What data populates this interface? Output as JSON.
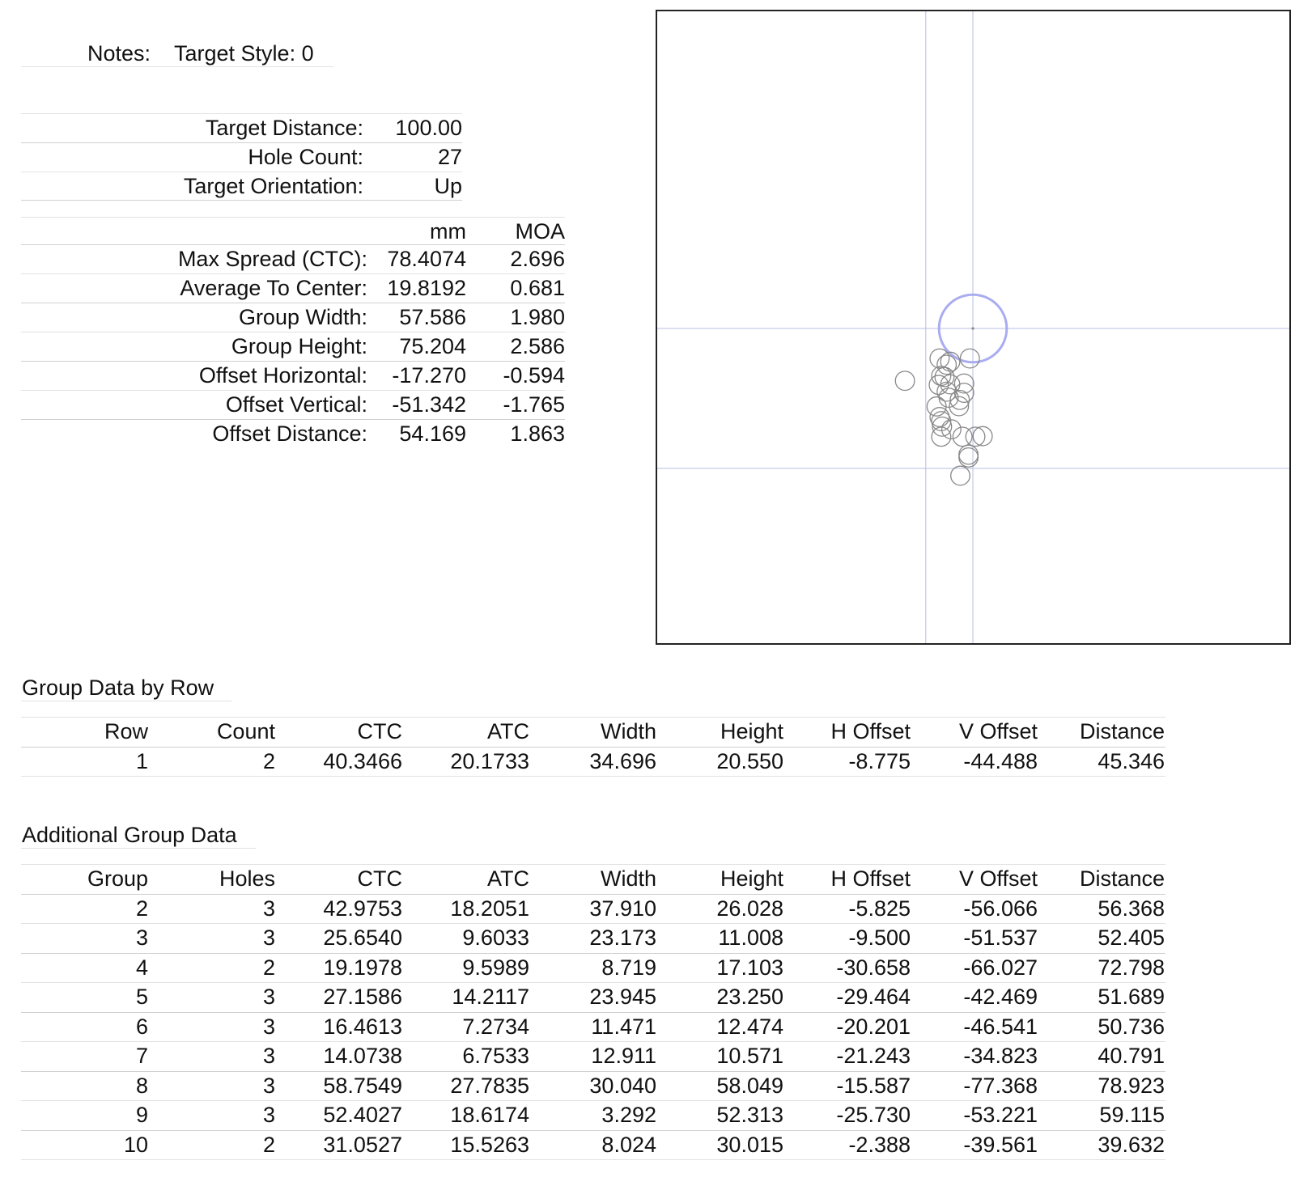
{
  "notes": {
    "label": "Notes:",
    "value": "Target Style: 0"
  },
  "target_info": [
    {
      "label": "Target Distance:",
      "value": "100.00"
    },
    {
      "label": "Hole Count:",
      "value": "27"
    },
    {
      "label": "Target Orientation:",
      "value": "Up"
    }
  ],
  "stats": {
    "headers": {
      "mm": "mm",
      "moa": "MOA"
    },
    "rows": [
      {
        "label": "Max Spread (CTC):",
        "mm": "78.4074",
        "moa": "2.696"
      },
      {
        "label": "Average To Center:",
        "mm": "19.8192",
        "moa": "0.681"
      },
      {
        "label": "Group Width:",
        "mm": "57.586",
        "moa": "1.980"
      },
      {
        "label": "Group Height:",
        "mm": "75.204",
        "moa": "2.586"
      },
      {
        "label": "Offset Horizontal:",
        "mm": "-17.270",
        "moa": "-0.594"
      },
      {
        "label": "Offset Vertical:",
        "mm": "-51.342",
        "moa": "-1.765"
      },
      {
        "label": "Offset Distance:",
        "mm": "54.169",
        "moa": "1.863"
      }
    ]
  },
  "row_table": {
    "title": "Group Data by Row",
    "headers": [
      "Row",
      "Count",
      "CTC",
      "ATC",
      "Width",
      "Height",
      "H Offset",
      "V Offset",
      "Distance"
    ],
    "rows": [
      [
        "1",
        "2",
        "40.3466",
        "20.1733",
        "34.696",
        "20.550",
        "-8.775",
        "-44.488",
        "45.346"
      ]
    ]
  },
  "group_table": {
    "title": "Additional Group Data",
    "headers": [
      "Group",
      "Holes",
      "CTC",
      "ATC",
      "Width",
      "Height",
      "H Offset",
      "V Offset",
      "Distance"
    ],
    "rows": [
      [
        "2",
        "3",
        "42.9753",
        "18.2051",
        "37.910",
        "26.028",
        "-5.825",
        "-56.066",
        "56.368"
      ],
      [
        "3",
        "3",
        "25.6540",
        "9.6033",
        "23.173",
        "11.008",
        "-9.500",
        "-51.537",
        "52.405"
      ],
      [
        "4",
        "2",
        "19.1978",
        "9.5989",
        "8.719",
        "17.103",
        "-30.658",
        "-66.027",
        "72.798"
      ],
      [
        "5",
        "3",
        "27.1586",
        "14.2117",
        "23.945",
        "23.250",
        "-29.464",
        "-42.469",
        "51.689"
      ],
      [
        "6",
        "3",
        "16.4613",
        "7.2734",
        "11.471",
        "12.474",
        "-20.201",
        "-46.541",
        "50.736"
      ],
      [
        "7",
        "3",
        "14.0738",
        "6.7533",
        "12.911",
        "10.571",
        "-21.243",
        "-34.823",
        "40.791"
      ],
      [
        "8",
        "3",
        "58.7549",
        "27.7835",
        "30.040",
        "58.049",
        "-15.587",
        "-77.368",
        "78.923"
      ],
      [
        "9",
        "3",
        "52.4027",
        "18.6174",
        "3.292",
        "52.313",
        "-25.730",
        "-53.221",
        "59.115"
      ],
      [
        "10",
        "2",
        "31.0527",
        "15.5263",
        "8.024",
        "30.015",
        "-2.388",
        "-39.561",
        "39.632"
      ]
    ]
  },
  "target": {
    "hole_offsets_mm": [
      [
        -1.1,
        -11.0
      ],
      [
        -12.2,
        -11.0
      ],
      [
        -9.6,
        -13.3
      ],
      [
        -8.3,
        -12.2
      ],
      [
        -11.6,
        -17.4
      ],
      [
        -10.4,
        -17.8
      ],
      [
        -24.9,
        -19.2
      ],
      [
        -12.5,
        -20.7
      ],
      [
        -8.3,
        -20.5
      ],
      [
        -3.2,
        -20.2
      ],
      [
        -9.6,
        -23.2
      ],
      [
        -3.2,
        -23.6
      ],
      [
        -8.9,
        -25.4
      ],
      [
        -4.8,
        -26.2
      ],
      [
        -5.1,
        -28.5
      ],
      [
        -13.3,
        -28.6
      ],
      [
        -12.2,
        -32.5
      ],
      [
        -11.6,
        -34.0
      ],
      [
        -11.3,
        -36.0
      ],
      [
        -7.9,
        -37.0
      ],
      [
        -11.6,
        -39.7
      ],
      [
        -3.8,
        -39.7
      ],
      [
        0.9,
        -39.7
      ],
      [
        3.6,
        -39.5
      ],
      [
        -1.6,
        -46.3
      ],
      [
        -1.6,
        -47.3
      ],
      [
        -4.6,
        -54.0
      ]
    ],
    "group_center_mm": [
      -17.27,
      -51.342
    ],
    "hole_diameter_mm": 7.62,
    "bull_diameter_mm": 25.4,
    "colors": {
      "bull": "#a9acf0",
      "crosshair": "#b8bde6",
      "hole": "#888888",
      "border": "#222222"
    }
  }
}
